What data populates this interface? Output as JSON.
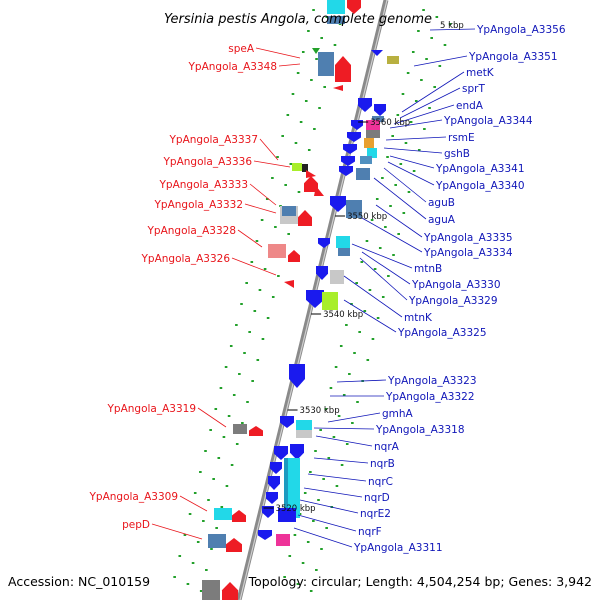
{
  "title": "Yersinia pestis Angola, complete genome",
  "footer": {
    "accession": "Accession: NC_010159",
    "summary": "Topology: circular; Length: 4,504,254 bp; Genes: 3,942"
  },
  "colors": {
    "backbone": "#8f8f8f",
    "left_label": "#e8151b",
    "right_label": "#1016b8",
    "feature_dots": "#22a02a"
  },
  "ticks": [
    "3560 kbp",
    "3550 kbp",
    "3540 kbp",
    "3530 kbp",
    "3520 kbp"
  ],
  "top_tick_fragment": "5 kbp",
  "left_labels": [
    "speA",
    "YpAngola_A3348",
    "YpAngola_A3337",
    "YpAngola_A3336",
    "YpAngola_A3333",
    "YpAngola_A3332",
    "YpAngola_A3328",
    "YpAngola_A3326",
    "YpAngola_A3319",
    "YpAngola_A3309",
    "pepD"
  ],
  "right_labels": [
    "YpAngola_A3356",
    "YpAngola_A3351",
    "metK",
    "sprT",
    "endA",
    "YpAngola_A3344",
    "rsmE",
    "gshB",
    "YpAngola_A3341",
    "YpAngola_A3340",
    "aguB",
    "aguA",
    "YpAngola_A3335",
    "YpAngola_A3334",
    "mtnB",
    "YpAngola_A3330",
    "YpAngola_A3329",
    "mtnK",
    "YpAngola_A3325",
    "YpAngola_A3323",
    "YpAngola_A3322",
    "gmhA",
    "YpAngola_A3318",
    "nqrA",
    "nqrB",
    "nqrC",
    "nqrD",
    "nqrE2",
    "nqrF",
    "YpAngola_A3311"
  ]
}
